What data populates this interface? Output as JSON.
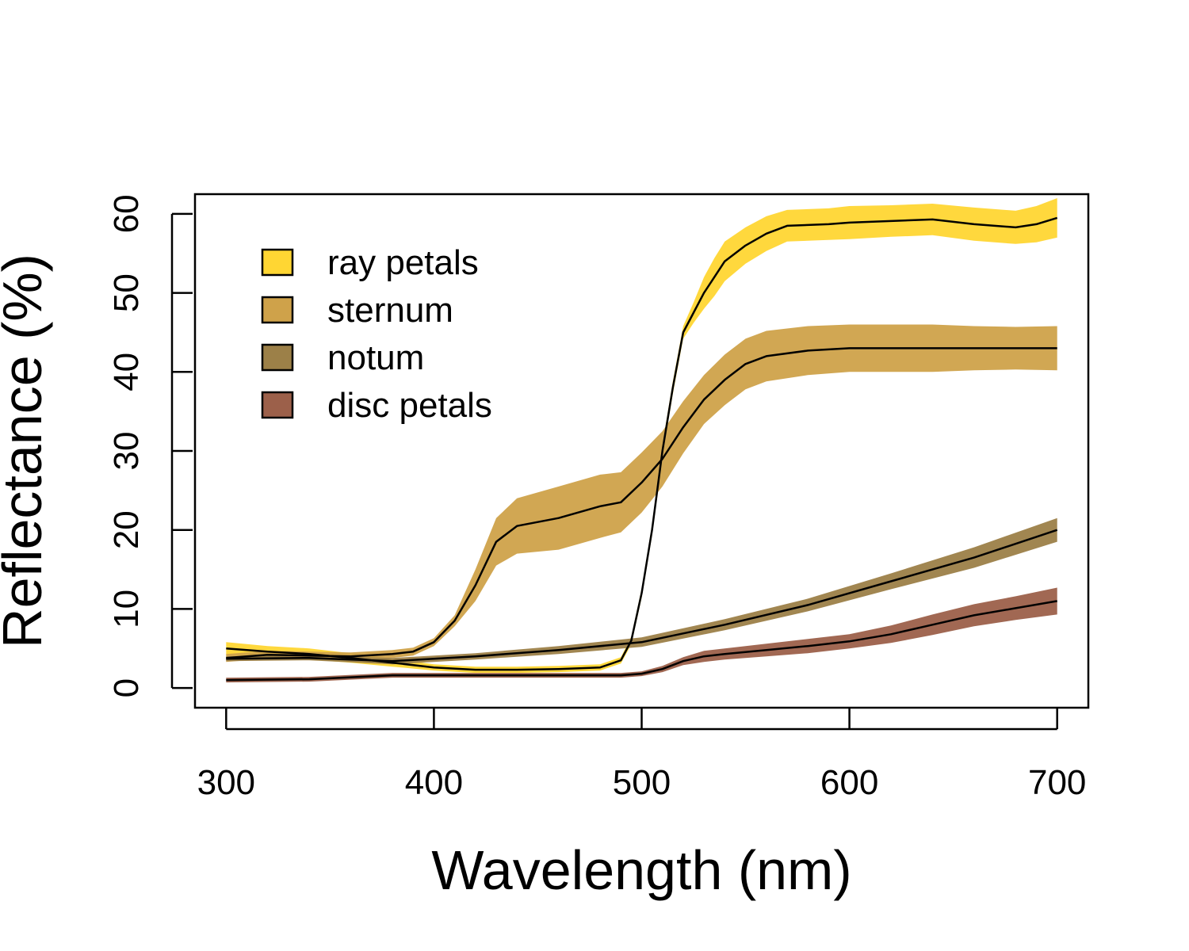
{
  "chart_data": {
    "type": "line",
    "title": "",
    "xlabel": "Wavelength (nm)",
    "ylabel": "Reflectance (%)",
    "xlim": [
      285,
      715
    ],
    "ylim": [
      -2.5,
      62.5
    ],
    "xticks": [
      300,
      400,
      500,
      600,
      700
    ],
    "yticks": [
      0,
      10,
      20,
      30,
      40,
      50,
      60
    ],
    "grid": false,
    "legend_position": "top-left",
    "series": [
      {
        "name": "ray petals",
        "color": "#FFD633",
        "x": [
          300,
          320,
          340,
          360,
          380,
          400,
          420,
          440,
          460,
          480,
          490,
          495,
          500,
          505,
          510,
          515,
          520,
          525,
          530,
          535,
          540,
          550,
          560,
          570,
          580,
          590,
          600,
          620,
          640,
          660,
          680,
          690,
          700
        ],
        "mean": [
          5.0,
          4.6,
          4.3,
          3.8,
          3.2,
          2.6,
          2.3,
          2.3,
          2.4,
          2.6,
          3.5,
          6.0,
          12.0,
          20.0,
          30.0,
          38.0,
          45.0,
          47.5,
          50.0,
          52.0,
          54.0,
          56.0,
          57.5,
          58.5,
          58.6,
          58.7,
          58.9,
          59.1,
          59.3,
          58.7,
          58.3,
          58.7,
          59.5
        ],
        "upper": [
          5.8,
          5.3,
          5.0,
          4.4,
          3.7,
          3.0,
          2.7,
          2.7,
          2.8,
          3.0,
          3.9,
          6.5,
          12.6,
          20.7,
          30.8,
          38.8,
          45.8,
          48.8,
          52.0,
          54.4,
          56.5,
          58.3,
          59.7,
          60.5,
          60.6,
          60.7,
          61.0,
          61.1,
          61.3,
          60.8,
          60.4,
          61.0,
          62.0
        ],
        "lower": [
          4.2,
          3.9,
          3.6,
          3.2,
          2.7,
          2.2,
          1.9,
          1.9,
          2.0,
          2.2,
          3.1,
          5.5,
          11.4,
          19.3,
          29.2,
          37.2,
          44.2,
          46.2,
          48.0,
          49.6,
          51.5,
          53.7,
          55.3,
          56.5,
          56.6,
          56.7,
          56.8,
          57.1,
          57.3,
          56.6,
          56.2,
          56.4,
          57.0
        ]
      },
      {
        "name": "sternum",
        "color": "#CFA24A",
        "x": [
          300,
          320,
          340,
          360,
          380,
          390,
          400,
          410,
          420,
          430,
          440,
          460,
          480,
          490,
          500,
          510,
          520,
          530,
          540,
          550,
          560,
          580,
          600,
          620,
          640,
          660,
          680,
          700
        ],
        "mean": [
          3.8,
          4.2,
          4.1,
          4.0,
          4.3,
          4.6,
          5.8,
          8.5,
          13.0,
          18.5,
          20.5,
          21.5,
          23.0,
          23.5,
          26.0,
          29.0,
          33.0,
          36.5,
          39.0,
          41.0,
          42.0,
          42.7,
          43.0,
          43.0,
          43.0,
          43.0,
          43.0,
          43.0
        ],
        "upper": [
          4.3,
          4.7,
          4.6,
          4.5,
          4.8,
          5.1,
          6.3,
          9.2,
          15.0,
          21.5,
          24.0,
          25.5,
          27.0,
          27.3,
          29.8,
          32.5,
          36.3,
          39.6,
          42.2,
          44.2,
          45.2,
          45.8,
          46.0,
          46.0,
          46.0,
          45.8,
          45.7,
          45.8
        ],
        "lower": [
          3.3,
          3.7,
          3.6,
          3.5,
          3.8,
          4.1,
          5.3,
          7.8,
          11.0,
          15.5,
          17.0,
          17.5,
          19.0,
          19.7,
          22.2,
          25.5,
          29.7,
          33.4,
          35.8,
          37.8,
          38.8,
          39.6,
          40.0,
          40.0,
          40.0,
          40.2,
          40.3,
          40.2
        ]
      },
      {
        "name": "notum",
        "color": "#9C8048",
        "x": [
          300,
          340,
          380,
          420,
          460,
          500,
          540,
          580,
          620,
          660,
          700
        ],
        "mean": [
          3.7,
          3.8,
          3.4,
          4.0,
          4.8,
          5.8,
          8.0,
          10.5,
          13.5,
          16.5,
          20.0
        ],
        "upper": [
          4.0,
          4.1,
          3.8,
          4.4,
          5.3,
          6.4,
          8.7,
          11.3,
          14.5,
          17.8,
          21.5
        ],
        "lower": [
          3.4,
          3.5,
          3.0,
          3.6,
          4.3,
          5.2,
          7.3,
          9.7,
          12.5,
          15.2,
          18.5
        ]
      },
      {
        "name": "disc petals",
        "color": "#9C604A",
        "x": [
          300,
          340,
          380,
          420,
          460,
          490,
          500,
          510,
          520,
          530,
          540,
          560,
          580,
          600,
          620,
          640,
          660,
          680,
          700
        ],
        "mean": [
          1.0,
          1.1,
          1.6,
          1.6,
          1.6,
          1.6,
          1.8,
          2.4,
          3.4,
          4.0,
          4.3,
          4.8,
          5.3,
          5.9,
          6.8,
          8.0,
          9.2,
          10.1,
          11.0
        ],
        "upper": [
          1.3,
          1.4,
          1.9,
          1.9,
          1.9,
          1.9,
          2.1,
          2.8,
          3.9,
          4.7,
          5.0,
          5.6,
          6.2,
          6.8,
          7.9,
          9.3,
          10.6,
          11.6,
          12.7
        ],
        "lower": [
          0.7,
          0.8,
          1.3,
          1.3,
          1.3,
          1.3,
          1.5,
          2.0,
          2.9,
          3.3,
          3.6,
          4.0,
          4.4,
          5.0,
          5.7,
          6.7,
          7.8,
          8.6,
          9.3
        ]
      }
    ]
  }
}
